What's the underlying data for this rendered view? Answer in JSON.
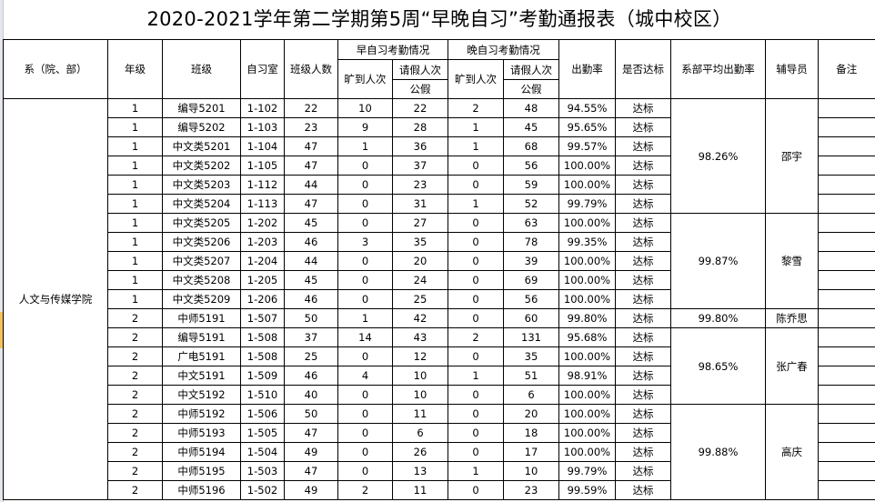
{
  "title": "2020-2021学年第二学期第5周“早晚自习”考勤通报表（城中校区）",
  "headers": {
    "dept": "系（院、部）",
    "grade": "年级",
    "class": "班级",
    "room": "自习室",
    "size": "班级人数",
    "morning_group": "早自习考勤情况",
    "evening_group": "晚自习考勤情况",
    "absent": "旷到人次",
    "leave": "请假人次",
    "public_leave": "公假",
    "rate": "出勤率",
    "pass": "是否达标",
    "avg": "系部平均出勤率",
    "counselor": "辅导员",
    "remark": "备注"
  },
  "department": "人文与传媒学院",
  "rows": [
    {
      "grade": "1",
      "class": "编导5201",
      "room": "1-102",
      "size": "22",
      "m_absent": "10",
      "m_leave": "22",
      "e_absent": "2",
      "e_leave": "48",
      "rate": "94.55%",
      "pass": "达标"
    },
    {
      "grade": "1",
      "class": "编导5202",
      "room": "1-103",
      "size": "23",
      "m_absent": "9",
      "m_leave": "28",
      "e_absent": "1",
      "e_leave": "45",
      "rate": "95.65%",
      "pass": "达标"
    },
    {
      "grade": "1",
      "class": "中文类5201",
      "room": "1-104",
      "size": "47",
      "m_absent": "1",
      "m_leave": "36",
      "e_absent": "1",
      "e_leave": "68",
      "rate": "99.57%",
      "pass": "达标"
    },
    {
      "grade": "1",
      "class": "中文类5202",
      "room": "1-105",
      "size": "47",
      "m_absent": "0",
      "m_leave": "37",
      "e_absent": "0",
      "e_leave": "56",
      "rate": "100.00%",
      "pass": "达标"
    },
    {
      "grade": "1",
      "class": "中文类5203",
      "room": "1-112",
      "size": "44",
      "m_absent": "0",
      "m_leave": "23",
      "e_absent": "0",
      "e_leave": "59",
      "rate": "100.00%",
      "pass": "达标"
    },
    {
      "grade": "1",
      "class": "中文类5204",
      "room": "1-113",
      "size": "47",
      "m_absent": "0",
      "m_leave": "31",
      "e_absent": "1",
      "e_leave": "52",
      "rate": "99.79%",
      "pass": "达标"
    },
    {
      "grade": "1",
      "class": "中文类5205",
      "room": "1-202",
      "size": "45",
      "m_absent": "0",
      "m_leave": "27",
      "e_absent": "0",
      "e_leave": "63",
      "rate": "100.00%",
      "pass": "达标"
    },
    {
      "grade": "1",
      "class": "中文类5206",
      "room": "1-203",
      "size": "46",
      "m_absent": "3",
      "m_leave": "35",
      "e_absent": "0",
      "e_leave": "78",
      "rate": "99.35%",
      "pass": "达标"
    },
    {
      "grade": "1",
      "class": "中文类5207",
      "room": "1-204",
      "size": "44",
      "m_absent": "0",
      "m_leave": "20",
      "e_absent": "0",
      "e_leave": "39",
      "rate": "100.00%",
      "pass": "达标"
    },
    {
      "grade": "1",
      "class": "中文类5208",
      "room": "1-205",
      "size": "45",
      "m_absent": "0",
      "m_leave": "24",
      "e_absent": "0",
      "e_leave": "69",
      "rate": "100.00%",
      "pass": "达标"
    },
    {
      "grade": "1",
      "class": "中文类5209",
      "room": "1-206",
      "size": "46",
      "m_absent": "0",
      "m_leave": "25",
      "e_absent": "0",
      "e_leave": "56",
      "rate": "100.00%",
      "pass": "达标"
    },
    {
      "grade": "2",
      "class": "中师5191",
      "room": "1-507",
      "size": "50",
      "m_absent": "1",
      "m_leave": "42",
      "e_absent": "0",
      "e_leave": "60",
      "rate": "99.80%",
      "pass": "达标"
    },
    {
      "grade": "2",
      "class": "编导5191",
      "room": "1-508",
      "size": "37",
      "m_absent": "14",
      "m_leave": "43",
      "e_absent": "2",
      "e_leave": "131",
      "rate": "95.68%",
      "pass": "达标"
    },
    {
      "grade": "2",
      "class": "广电5191",
      "room": "1-508",
      "size": "25",
      "m_absent": "0",
      "m_leave": "12",
      "e_absent": "0",
      "e_leave": "35",
      "rate": "100.00%",
      "pass": "达标"
    },
    {
      "grade": "2",
      "class": "中文5191",
      "room": "1-509",
      "size": "46",
      "m_absent": "4",
      "m_leave": "10",
      "e_absent": "1",
      "e_leave": "51",
      "rate": "98.91%",
      "pass": "达标"
    },
    {
      "grade": "2",
      "class": "中文5192",
      "room": "1-510",
      "size": "40",
      "m_absent": "0",
      "m_leave": "10",
      "e_absent": "0",
      "e_leave": "6",
      "rate": "100.00%",
      "pass": "达标"
    },
    {
      "grade": "2",
      "class": "中师5192",
      "room": "1-506",
      "size": "50",
      "m_absent": "0",
      "m_leave": "11",
      "e_absent": "0",
      "e_leave": "20",
      "rate": "100.00%",
      "pass": "达标"
    },
    {
      "grade": "2",
      "class": "中师5193",
      "room": "1-505",
      "size": "47",
      "m_absent": "0",
      "m_leave": "6",
      "e_absent": "0",
      "e_leave": "18",
      "rate": "100.00%",
      "pass": "达标"
    },
    {
      "grade": "2",
      "class": "中师5194",
      "room": "1-504",
      "size": "49",
      "m_absent": "0",
      "m_leave": "26",
      "e_absent": "0",
      "e_leave": "17",
      "rate": "100.00%",
      "pass": "达标"
    },
    {
      "grade": "2",
      "class": "中师5195",
      "room": "1-503",
      "size": "47",
      "m_absent": "0",
      "m_leave": "13",
      "e_absent": "1",
      "e_leave": "10",
      "rate": "99.79%",
      "pass": "达标"
    },
    {
      "grade": "2",
      "class": "中师5196",
      "room": "1-502",
      "size": "49",
      "m_absent": "2",
      "m_leave": "11",
      "e_absent": "0",
      "e_leave": "23",
      "rate": "99.59%",
      "pass": "达标"
    }
  ],
  "groups": [
    {
      "rows": 6,
      "avg": "98.26%",
      "counselor": "邵宇"
    },
    {
      "rows": 5,
      "avg": "99.87%",
      "counselor": "黎雪"
    },
    {
      "rows": 1,
      "avg": "99.80%",
      "counselor": "陈乔思"
    },
    {
      "rows": 4,
      "avg": "98.65%",
      "counselor": "张广春"
    },
    {
      "rows": 5,
      "avg": "99.88%",
      "counselor": "高庆"
    }
  ]
}
